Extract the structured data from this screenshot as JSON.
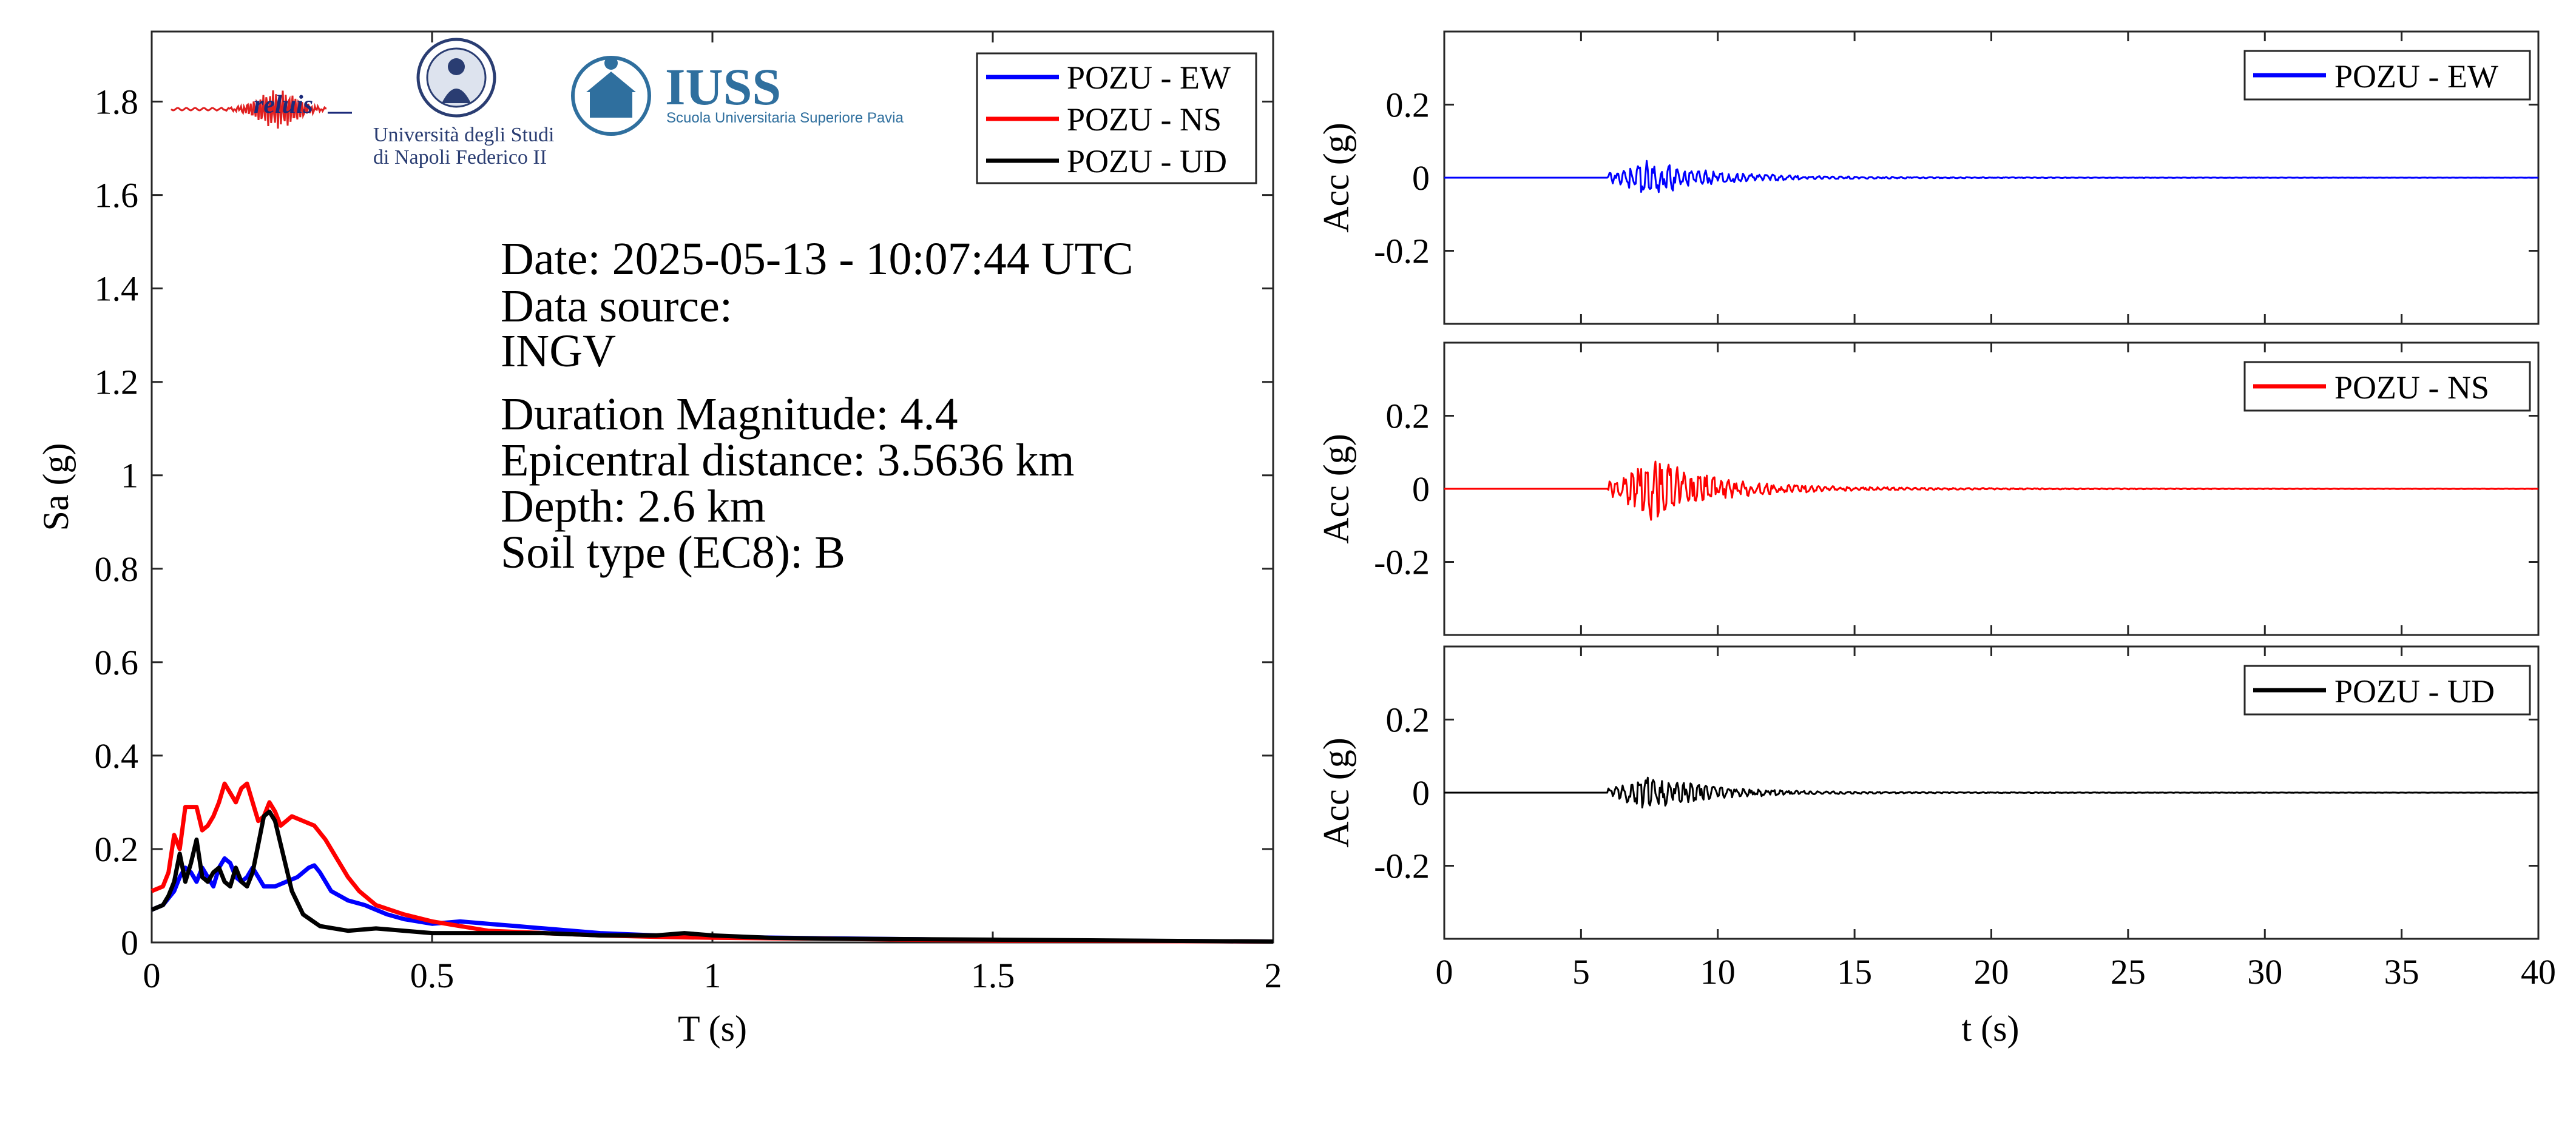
{
  "logos": {
    "reluis": "reluis",
    "unina_line1": "Università degli Studi",
    "unina_line2": "di Napoli Federico II",
    "iuss": "IUSS",
    "iuss_sub": "Scuola Universitaria Superiore Pavia"
  },
  "info_text": {
    "date": "Date: 2025-05-13 - 10:07:44 UTC",
    "source_label": "Data source:",
    "source_value": "INGV",
    "magnitude": "Duration Magnitude: 4.4",
    "epicentral": "Epicentral distance: 3.5636 km",
    "depth": "Depth: 2.6 km",
    "soil": "Soil type (EC8): B"
  },
  "colors": {
    "ew": "#0000ff",
    "ns": "#ff0000",
    "ud": "#000000",
    "axis": "#262626"
  },
  "chart_data": [
    {
      "type": "line",
      "xlabel": "T (s)",
      "ylabel": "Sa (g)",
      "xlim": [
        0,
        2
      ],
      "ylim": [
        0,
        1.95
      ],
      "xticks": [
        0,
        0.5,
        1,
        1.5,
        2
      ],
      "xtick_labels": [
        "0",
        "0.5",
        "1",
        "1.5",
        "2"
      ],
      "yticks": [
        0,
        0.2,
        0.4,
        0.6,
        0.8,
        1,
        1.2,
        1.4,
        1.6,
        1.8
      ],
      "ytick_labels": [
        "0",
        "0.2",
        "0.4",
        "0.6",
        "0.8",
        "1",
        "1.2",
        "1.4",
        "1.6",
        "1.8"
      ],
      "grid": false,
      "legend_position": "top-right",
      "series": [
        {
          "name": "POZU - EW",
          "color": "#0000ff",
          "x": [
            0,
            0.02,
            0.04,
            0.05,
            0.06,
            0.07,
            0.08,
            0.09,
            0.1,
            0.11,
            0.12,
            0.13,
            0.14,
            0.15,
            0.16,
            0.17,
            0.18,
            0.19,
            0.2,
            0.22,
            0.24,
            0.26,
            0.28,
            0.29,
            0.3,
            0.32,
            0.35,
            0.38,
            0.4,
            0.42,
            0.45,
            0.5,
            0.55,
            0.6,
            0.65,
            0.7,
            0.8,
            0.9,
            1.0,
            1.2,
            1.5,
            2.0
          ],
          "values": [
            0.07,
            0.08,
            0.11,
            0.14,
            0.16,
            0.15,
            0.13,
            0.16,
            0.14,
            0.12,
            0.16,
            0.18,
            0.17,
            0.14,
            0.13,
            0.14,
            0.16,
            0.14,
            0.12,
            0.12,
            0.13,
            0.14,
            0.16,
            0.165,
            0.15,
            0.11,
            0.09,
            0.08,
            0.07,
            0.06,
            0.05,
            0.04,
            0.045,
            0.04,
            0.035,
            0.03,
            0.02,
            0.015,
            0.012,
            0.009,
            0.005,
            0.002
          ]
        },
        {
          "name": "POZU - NS",
          "color": "#ff0000",
          "x": [
            0,
            0.02,
            0.03,
            0.04,
            0.05,
            0.06,
            0.07,
            0.08,
            0.09,
            0.1,
            0.11,
            0.12,
            0.13,
            0.14,
            0.15,
            0.16,
            0.17,
            0.18,
            0.19,
            0.2,
            0.21,
            0.22,
            0.23,
            0.25,
            0.27,
            0.29,
            0.31,
            0.33,
            0.35,
            0.37,
            0.4,
            0.45,
            0.5,
            0.55,
            0.6,
            0.7,
            0.8,
            0.9,
            1.0,
            1.2,
            1.5,
            2.0
          ],
          "values": [
            0.11,
            0.12,
            0.15,
            0.23,
            0.2,
            0.29,
            0.29,
            0.29,
            0.24,
            0.25,
            0.27,
            0.3,
            0.34,
            0.32,
            0.3,
            0.33,
            0.34,
            0.3,
            0.26,
            0.27,
            0.3,
            0.28,
            0.25,
            0.27,
            0.26,
            0.25,
            0.22,
            0.18,
            0.14,
            0.11,
            0.08,
            0.06,
            0.045,
            0.035,
            0.025,
            0.02,
            0.015,
            0.012,
            0.01,
            0.008,
            0.004,
            0.002
          ]
        },
        {
          "name": "POZU - UD",
          "color": "#000000",
          "x": [
            0,
            0.02,
            0.03,
            0.04,
            0.05,
            0.06,
            0.07,
            0.08,
            0.09,
            0.1,
            0.11,
            0.12,
            0.13,
            0.14,
            0.15,
            0.16,
            0.17,
            0.18,
            0.19,
            0.2,
            0.21,
            0.22,
            0.23,
            0.24,
            0.25,
            0.27,
            0.3,
            0.35,
            0.4,
            0.45,
            0.5,
            0.6,
            0.7,
            0.8,
            0.9,
            0.95,
            1.0,
            1.1,
            1.2,
            1.5,
            2.0
          ],
          "values": [
            0.07,
            0.08,
            0.1,
            0.13,
            0.19,
            0.13,
            0.17,
            0.22,
            0.14,
            0.13,
            0.15,
            0.16,
            0.13,
            0.12,
            0.16,
            0.13,
            0.12,
            0.15,
            0.21,
            0.27,
            0.28,
            0.26,
            0.21,
            0.16,
            0.11,
            0.06,
            0.035,
            0.025,
            0.03,
            0.025,
            0.02,
            0.02,
            0.02,
            0.015,
            0.015,
            0.02,
            0.015,
            0.01,
            0.008,
            0.006,
            0.002
          ]
        }
      ]
    },
    {
      "type": "line",
      "xlabel": "",
      "ylabel": "Acc (g)",
      "xlim": [
        0,
        40
      ],
      "ylim": [
        -0.4,
        0.4
      ],
      "yticks": [
        -0.2,
        0,
        0.2
      ],
      "ytick_labels": [
        "-0.2",
        "0",
        "0.2"
      ],
      "legend_position": "top-right",
      "signal": {
        "onset_s": 6,
        "peak_s": 7.5,
        "peak_g": 0.05
      },
      "series": [
        {
          "name": "POZU - EW",
          "color": "#0000ff"
        }
      ]
    },
    {
      "type": "line",
      "xlabel": "",
      "ylabel": "Acc (g)",
      "xlim": [
        0,
        40
      ],
      "ylim": [
        -0.4,
        0.4
      ],
      "yticks": [
        -0.2,
        0,
        0.2
      ],
      "ytick_labels": [
        "-0.2",
        "0",
        "0.2"
      ],
      "legend_position": "top-right",
      "signal": {
        "onset_s": 6,
        "peak_s": 7.5,
        "peak_g": 0.09
      },
      "series": [
        {
          "name": "POZU - NS",
          "color": "#ff0000"
        }
      ]
    },
    {
      "type": "line",
      "xlabel": "t (s)",
      "ylabel": "Acc (g)",
      "xlim": [
        0,
        40
      ],
      "ylim": [
        -0.4,
        0.4
      ],
      "xticks": [
        0,
        5,
        10,
        15,
        20,
        25,
        30,
        35,
        40
      ],
      "xtick_labels": [
        "0",
        "5",
        "10",
        "15",
        "20",
        "25",
        "30",
        "35",
        "40"
      ],
      "yticks": [
        -0.2,
        0,
        0.2
      ],
      "ytick_labels": [
        "-0.2",
        "0",
        "0.2"
      ],
      "legend_position": "top-right",
      "signal": {
        "onset_s": 6,
        "peak_s": 7.5,
        "peak_g": 0.05
      },
      "series": [
        {
          "name": "POZU - UD",
          "color": "#000000"
        }
      ]
    }
  ]
}
